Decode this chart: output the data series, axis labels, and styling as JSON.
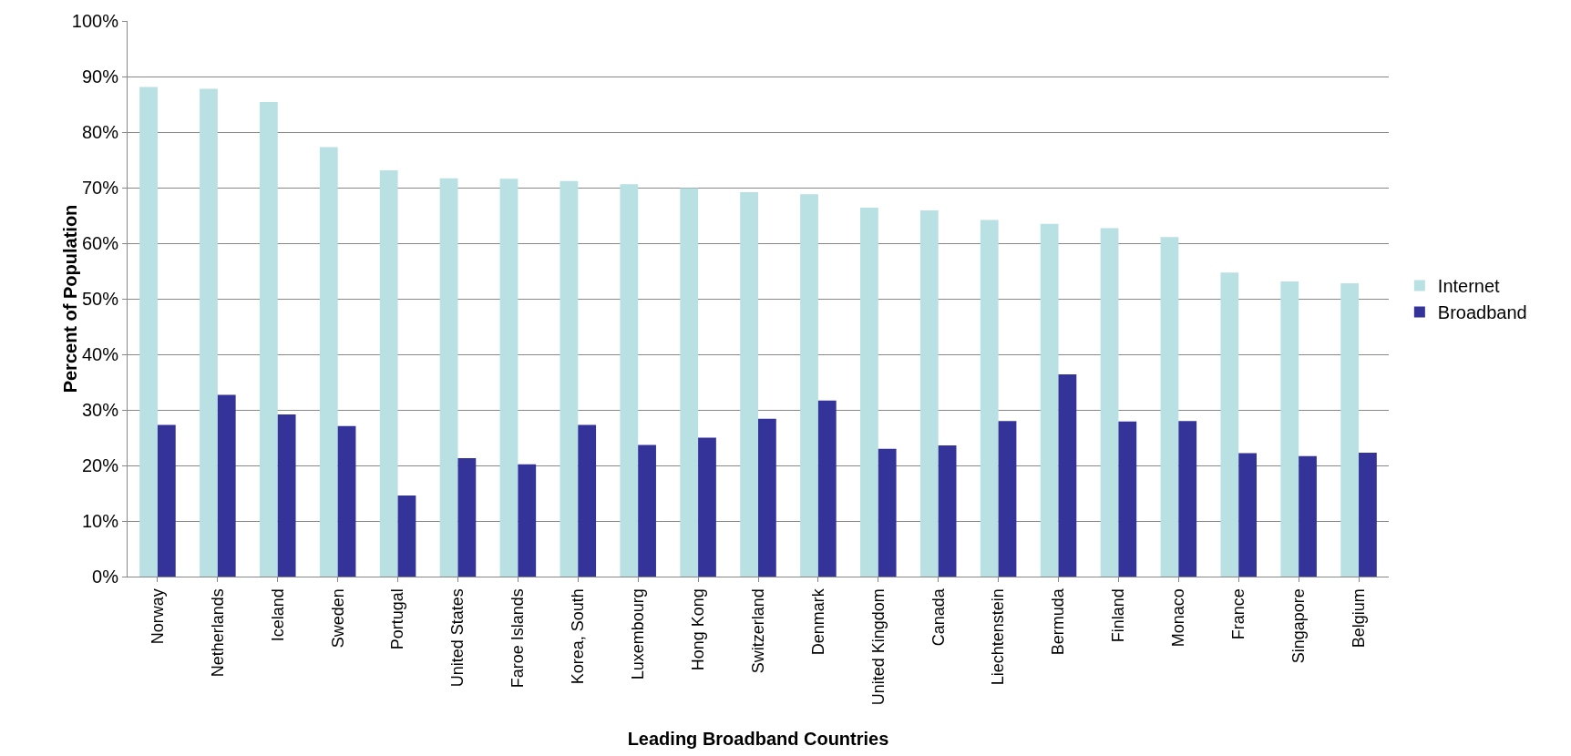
{
  "chart_data": {
    "type": "bar",
    "xlabel": "Leading Broadband Countries",
    "ylabel": "Percent of Population",
    "categories": [
      "Norway",
      "Netherlands",
      "Iceland",
      "Sweden",
      "Portugal",
      "United States",
      "Faroe Islands",
      "Korea, South",
      "Luxembourg",
      "Hong Kong",
      "Switzerland",
      "Denmark",
      "United Kingdom",
      "Canada",
      "Liechtenstein",
      "Bermuda",
      "Finland",
      "Monaco",
      "France",
      "Singapore",
      "Belgium"
    ],
    "series": [
      {
        "name": "Internet",
        "color": "#b9e0e2",
        "values": [
          88.1,
          87.8,
          85.4,
          77.3,
          73.1,
          71.7,
          71.6,
          71.2,
          70.6,
          69.9,
          69.2,
          68.8,
          66.4,
          65.9,
          64.2,
          63.5,
          62.7,
          61.1,
          54.7,
          53.1,
          52.8
        ]
      },
      {
        "name": "Broadband",
        "color": "#333399",
        "values": [
          27.3,
          32.7,
          29.2,
          27.1,
          14.6,
          21.3,
          20.2,
          27.3,
          23.7,
          25.0,
          28.4,
          31.7,
          23.0,
          23.6,
          28.0,
          36.4,
          27.9,
          28.0,
          22.2,
          21.7,
          22.3
        ]
      }
    ],
    "ylim": [
      0,
      100
    ],
    "yticks": [
      {
        "value": 0,
        "label": "0%"
      },
      {
        "value": 10,
        "label": "10%"
      },
      {
        "value": 20,
        "label": "20%"
      },
      {
        "value": 30,
        "label": "30%"
      },
      {
        "value": 40,
        "label": "40%"
      },
      {
        "value": 50,
        "label": "50%"
      },
      {
        "value": 60,
        "label": "60%"
      },
      {
        "value": 70,
        "label": "70%"
      },
      {
        "value": 80,
        "label": "80%"
      },
      {
        "value": 90,
        "label": "90%"
      },
      {
        "value": 100,
        "label": "100%"
      }
    ],
    "grid": "y",
    "legend": "right"
  }
}
